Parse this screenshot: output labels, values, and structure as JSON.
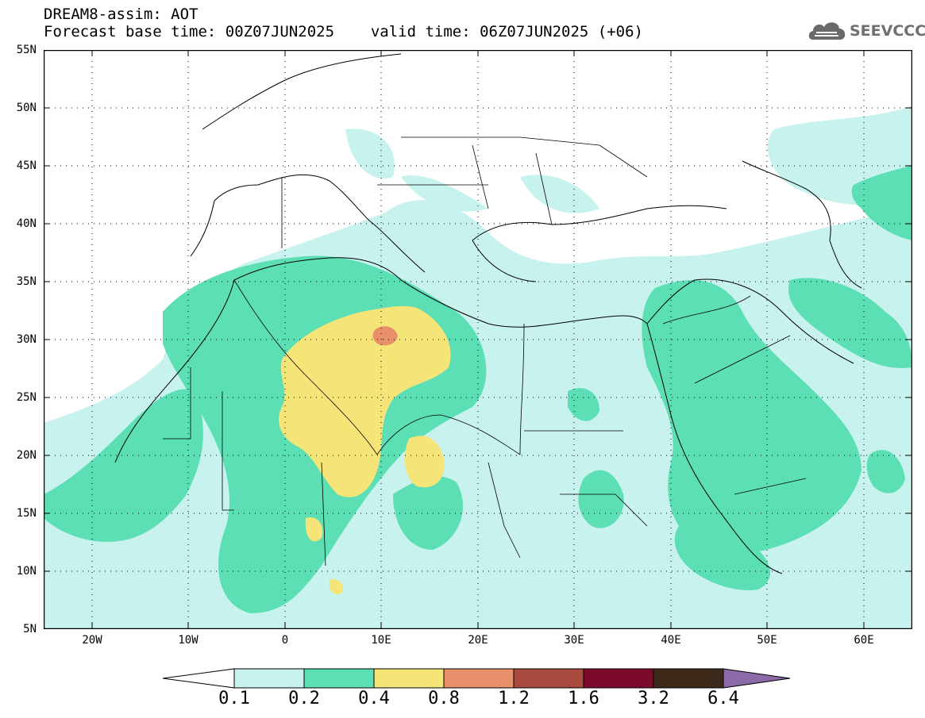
{
  "title": {
    "line1": "DREAM8-assim: AOT",
    "base_time": "Forecast base time: 00Z07JUN2025",
    "valid_time": "valid time: 06Z07JUN2025 (+06)"
  },
  "logo": {
    "text": "SEEVCCC",
    "icon": "cloud-logo-icon"
  },
  "map": {
    "lon_range": [
      -25,
      65
    ],
    "lat_range": [
      5,
      55
    ],
    "lat_labels": [
      "55N",
      "50N",
      "45N",
      "40N",
      "35N",
      "30N",
      "25N",
      "20N",
      "15N",
      "10N",
      "5N"
    ],
    "lon_labels": [
      "20W",
      "10W",
      "0",
      "10E",
      "20E",
      "30E",
      "40E",
      "50E",
      "60E"
    ],
    "field": "Aerosol Optical Thickness (AOT)"
  },
  "colorbar": {
    "levels": [
      "0.1",
      "0.2",
      "0.4",
      "0.8",
      "1.2",
      "1.6",
      "3.2",
      "6.4"
    ],
    "colors": [
      "#c8f2ee",
      "#5ddfb5",
      "#f5e478",
      "#e8906a",
      "#a84b3e",
      "#7c0a2a",
      "#3d2a1a",
      "#8c6aa8"
    ],
    "under_color": "#ffffff",
    "over_color": "#8c6aa8"
  },
  "colors": {
    "level_1": "#c8f2ee",
    "level_2": "#5ddfb5",
    "level_3": "#f5e478",
    "level_4": "#e8906a",
    "coast": "#000000"
  }
}
